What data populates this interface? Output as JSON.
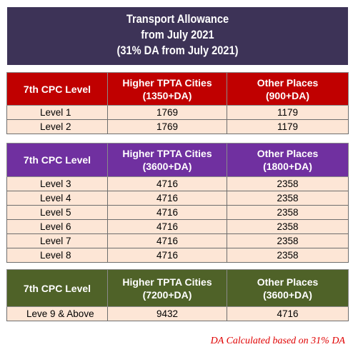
{
  "title": {
    "line1": "Transport Allowance",
    "line2": "from July 2021",
    "line3": "(31% DA from July 2021)"
  },
  "tables": [
    {
      "header": {
        "col1": "7th CPC Level",
        "col2_line1": "Higher TPTA Cities",
        "col2_line2": "(1350+DA)",
        "col3_line1": "Other Places",
        "col3_line2": "(900+DA)"
      },
      "rows": [
        {
          "level": "Level 1",
          "higher": "1769",
          "other": "1179"
        },
        {
          "level": "Level 2",
          "higher": "1769",
          "other": "1179"
        }
      ]
    },
    {
      "header": {
        "col1": "7th CPC Level",
        "col2_line1": "Higher TPTA Cities",
        "col2_line2": "(3600+DA)",
        "col3_line1": "Other Places",
        "col3_line2": "(1800+DA)"
      },
      "rows": [
        {
          "level": "Level 3",
          "higher": "4716",
          "other": "2358"
        },
        {
          "level": "Level 4",
          "higher": "4716",
          "other": "2358"
        },
        {
          "level": "Level 5",
          "higher": "4716",
          "other": "2358"
        },
        {
          "level": "Level 6",
          "higher": "4716",
          "other": "2358"
        },
        {
          "level": "Level 7",
          "higher": "4716",
          "other": "2358"
        },
        {
          "level": "Level 8",
          "higher": "4716",
          "other": "2358"
        }
      ]
    },
    {
      "header": {
        "col1": "7th CPC Level",
        "col2_line1": "Higher TPTA Cities",
        "col2_line2": "(7200+DA)",
        "col3_line1": "Other Places",
        "col3_line2": "(3600+DA)"
      },
      "rows": [
        {
          "level": "Leve 9 & Above",
          "higher": "9432",
          "other": "4716"
        }
      ]
    }
  ],
  "footnote": "DA Calculated based on 31% DA",
  "colors": {
    "banner": "#3d3357",
    "table1_header": "#c00000",
    "table2_header": "#7030a0",
    "table3_header": "#4f6228",
    "row_fill": "#fde6d6",
    "footnote": "#e00000"
  }
}
